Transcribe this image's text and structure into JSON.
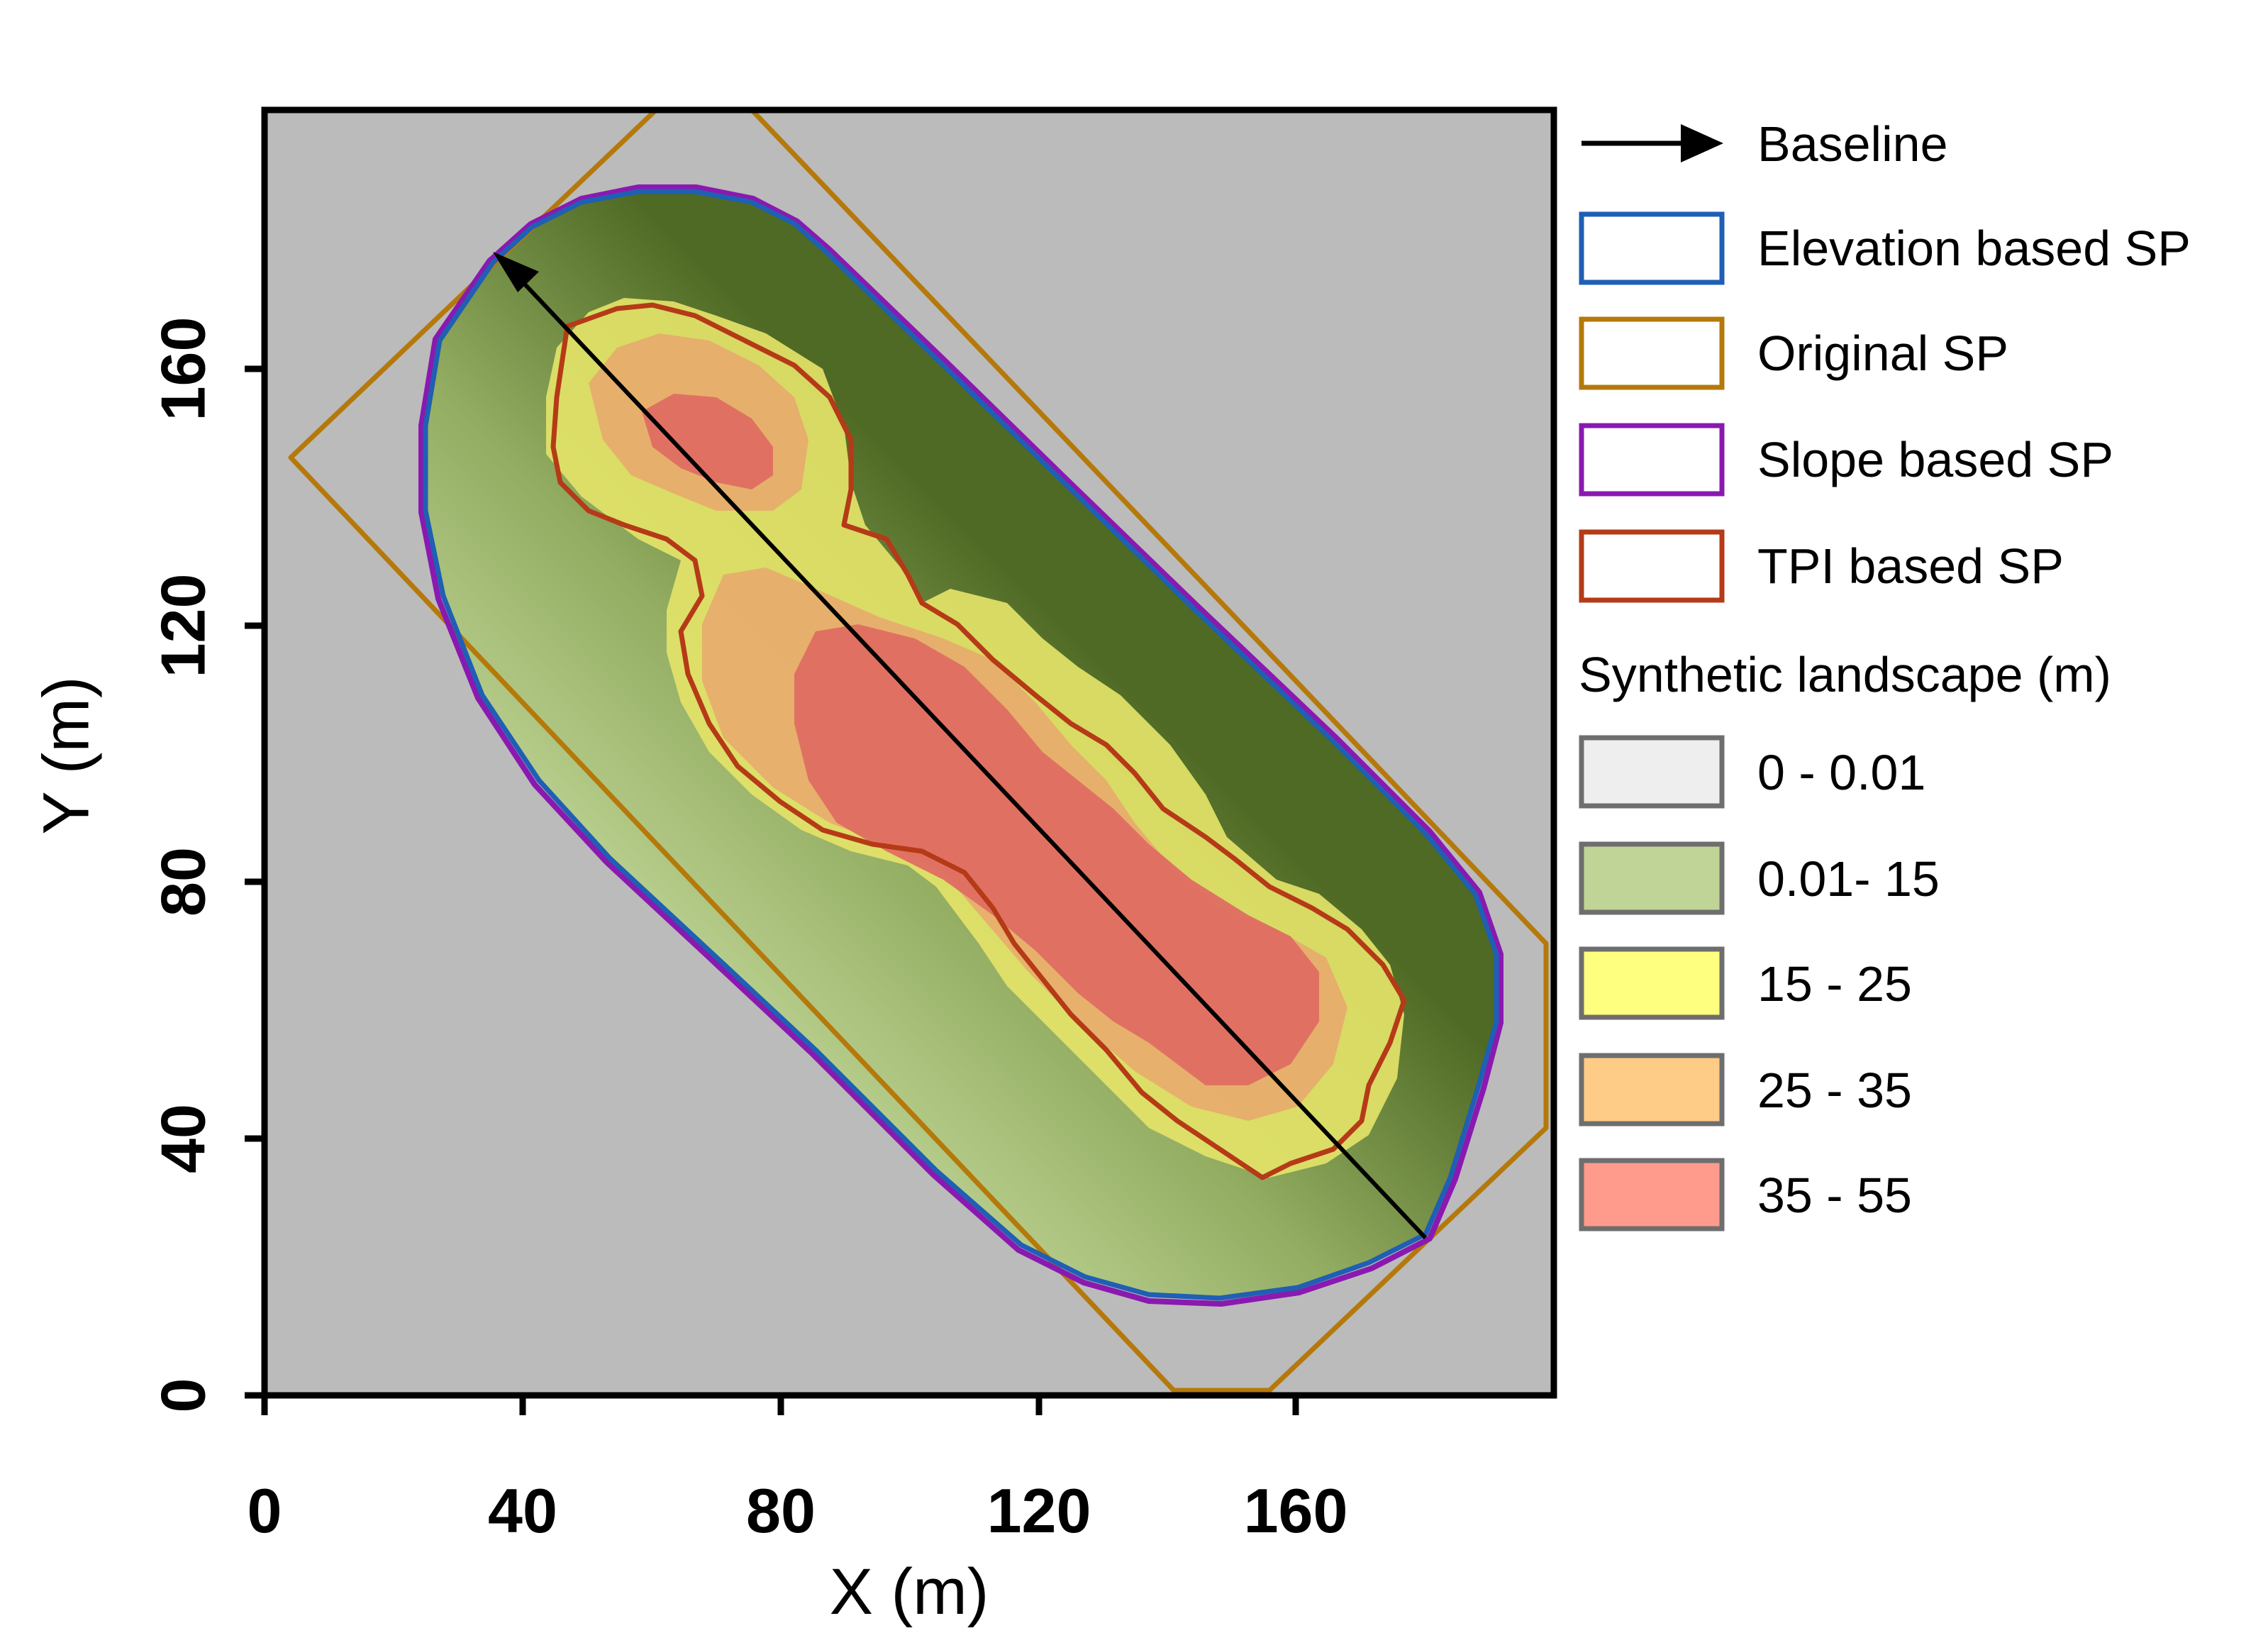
{
  "map": {
    "x_axis": {
      "title": "X (m)",
      "ticks": [
        "0",
        "40",
        "80",
        "120",
        "160"
      ]
    },
    "y_axis": {
      "title": "Y (m)",
      "ticks": [
        "0",
        "40",
        "80",
        "120",
        "160"
      ]
    },
    "colors": {
      "background": "#bbbbbb",
      "baseline": "#000000",
      "elevation_sp": "#1f5fb4",
      "original_sp": "#b5790b",
      "slope_sp": "#8a19b0",
      "tpi_sp": "#b53a17",
      "class_0": "#eeeeee",
      "class_1": "#bfd496",
      "class_2": "#ffff7f",
      "class_3": "#ffcc88",
      "class_4": "#ff9b8c"
    }
  },
  "legend": {
    "items": [
      {
        "label": "Baseline"
      },
      {
        "label": "Elevation based SP"
      },
      {
        "label": "Original SP"
      },
      {
        "label": "Slope based SP"
      },
      {
        "label": "TPI based SP"
      }
    ],
    "landscape_title": "Synthetic landscape (m)",
    "classes": [
      {
        "label": "0 - 0.01"
      },
      {
        "label": "0.01- 15"
      },
      {
        "label": "15 - 25"
      },
      {
        "label": "25 - 35"
      },
      {
        "label": "35 - 55"
      }
    ]
  }
}
